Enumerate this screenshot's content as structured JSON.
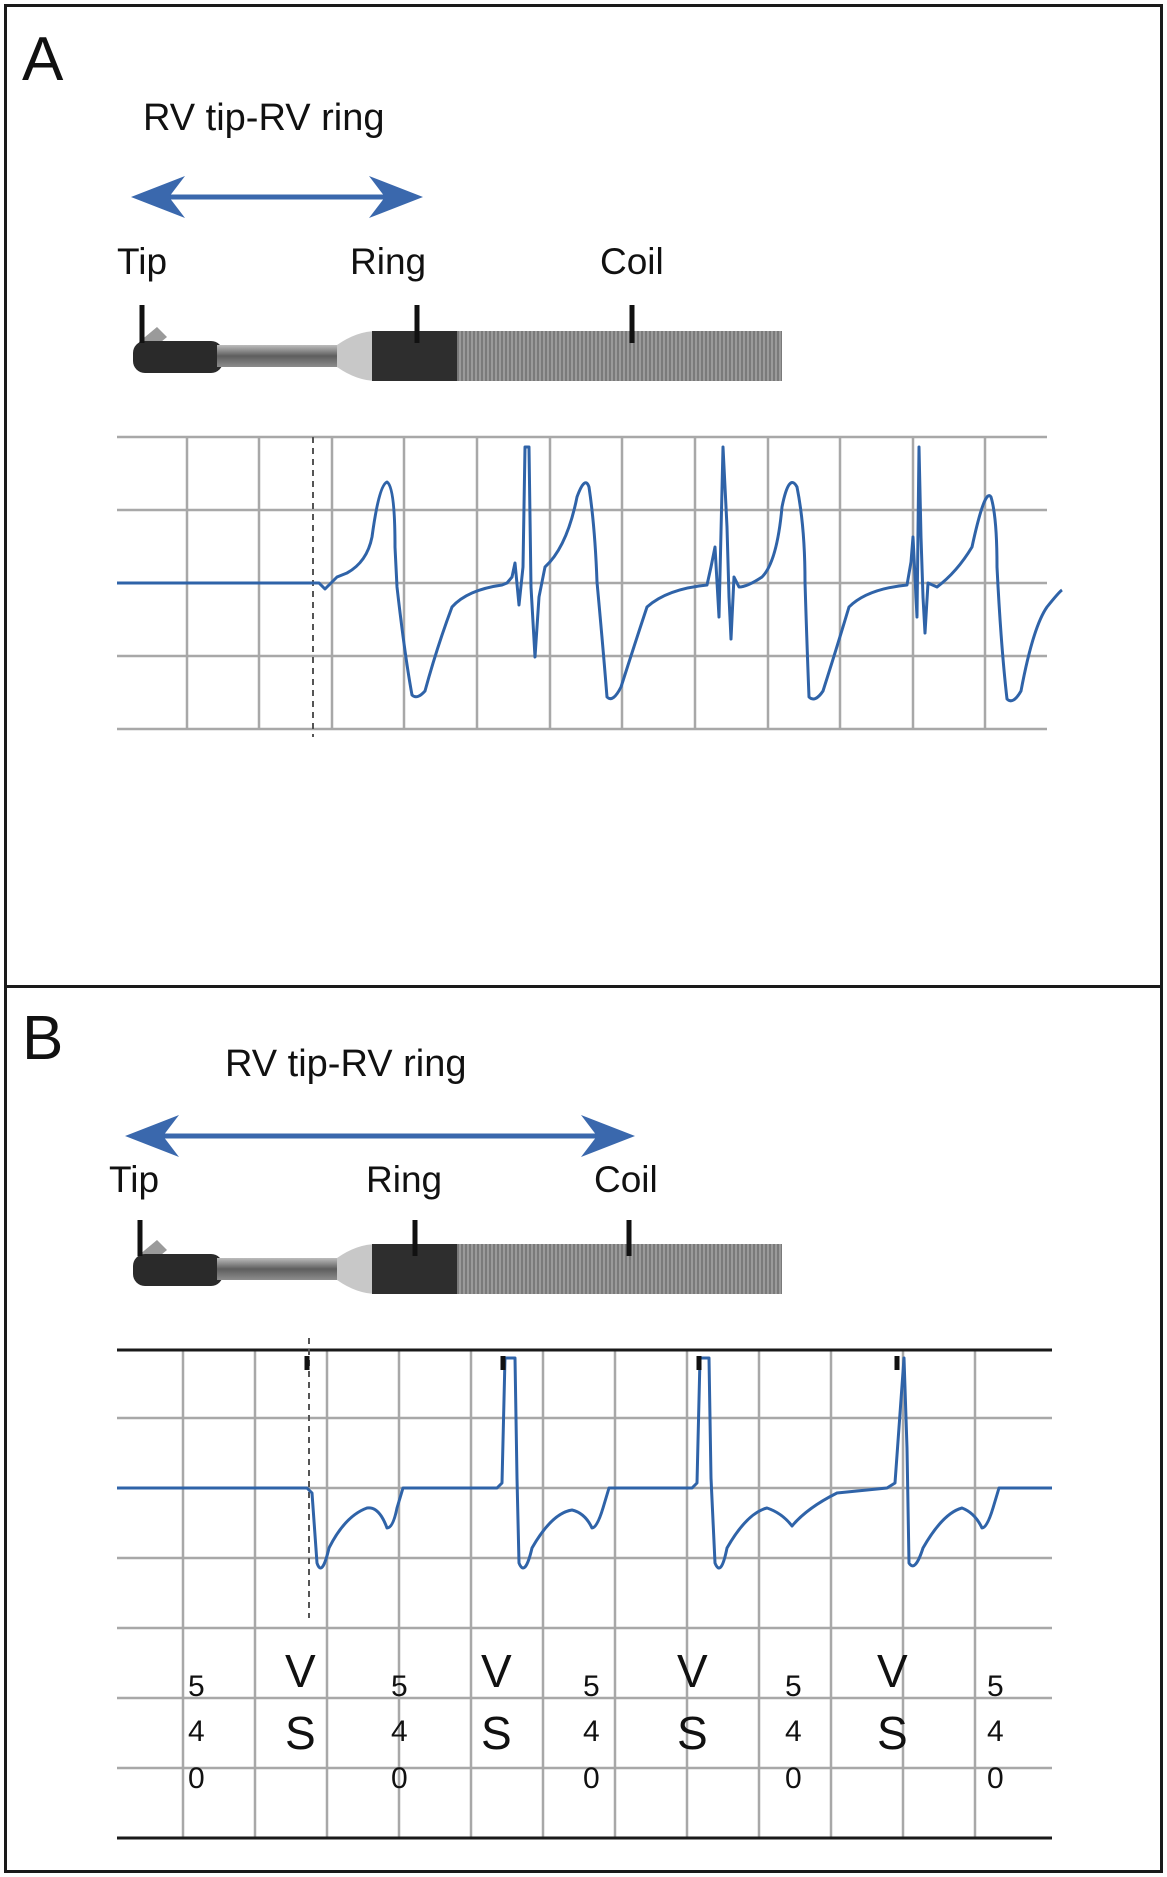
{
  "panel_a": {
    "letter": "A",
    "title": "RV tip-RV ring",
    "labels": {
      "tip": "Tip",
      "ring": "Ring",
      "coil": "Coil"
    }
  },
  "panel_b": {
    "letter": "B",
    "title": "RV tip-RV ring",
    "labels": {
      "tip": "Tip",
      "ring": "Ring",
      "coil": "Coil"
    },
    "marker_annotations": [
      {
        "top": "5",
        "mid": "4",
        "bot": "0"
      },
      {
        "top": "V",
        "bot": "S"
      },
      {
        "top": "5",
        "mid": "4",
        "bot": "0"
      },
      {
        "top": "V",
        "bot": "S"
      },
      {
        "top": "5",
        "mid": "4",
        "bot": "0"
      },
      {
        "top": "V",
        "bot": "S"
      },
      {
        "top": "5",
        "mid": "4",
        "bot": "0"
      },
      {
        "top": "V",
        "bot": "S"
      },
      {
        "top": "5",
        "mid": "4",
        "bot": "0"
      }
    ]
  },
  "colors": {
    "trace": "#2f63a8",
    "arrow": "#3a68ad",
    "grid": "#a8a8a8",
    "frame": "#1a1a1a"
  }
}
